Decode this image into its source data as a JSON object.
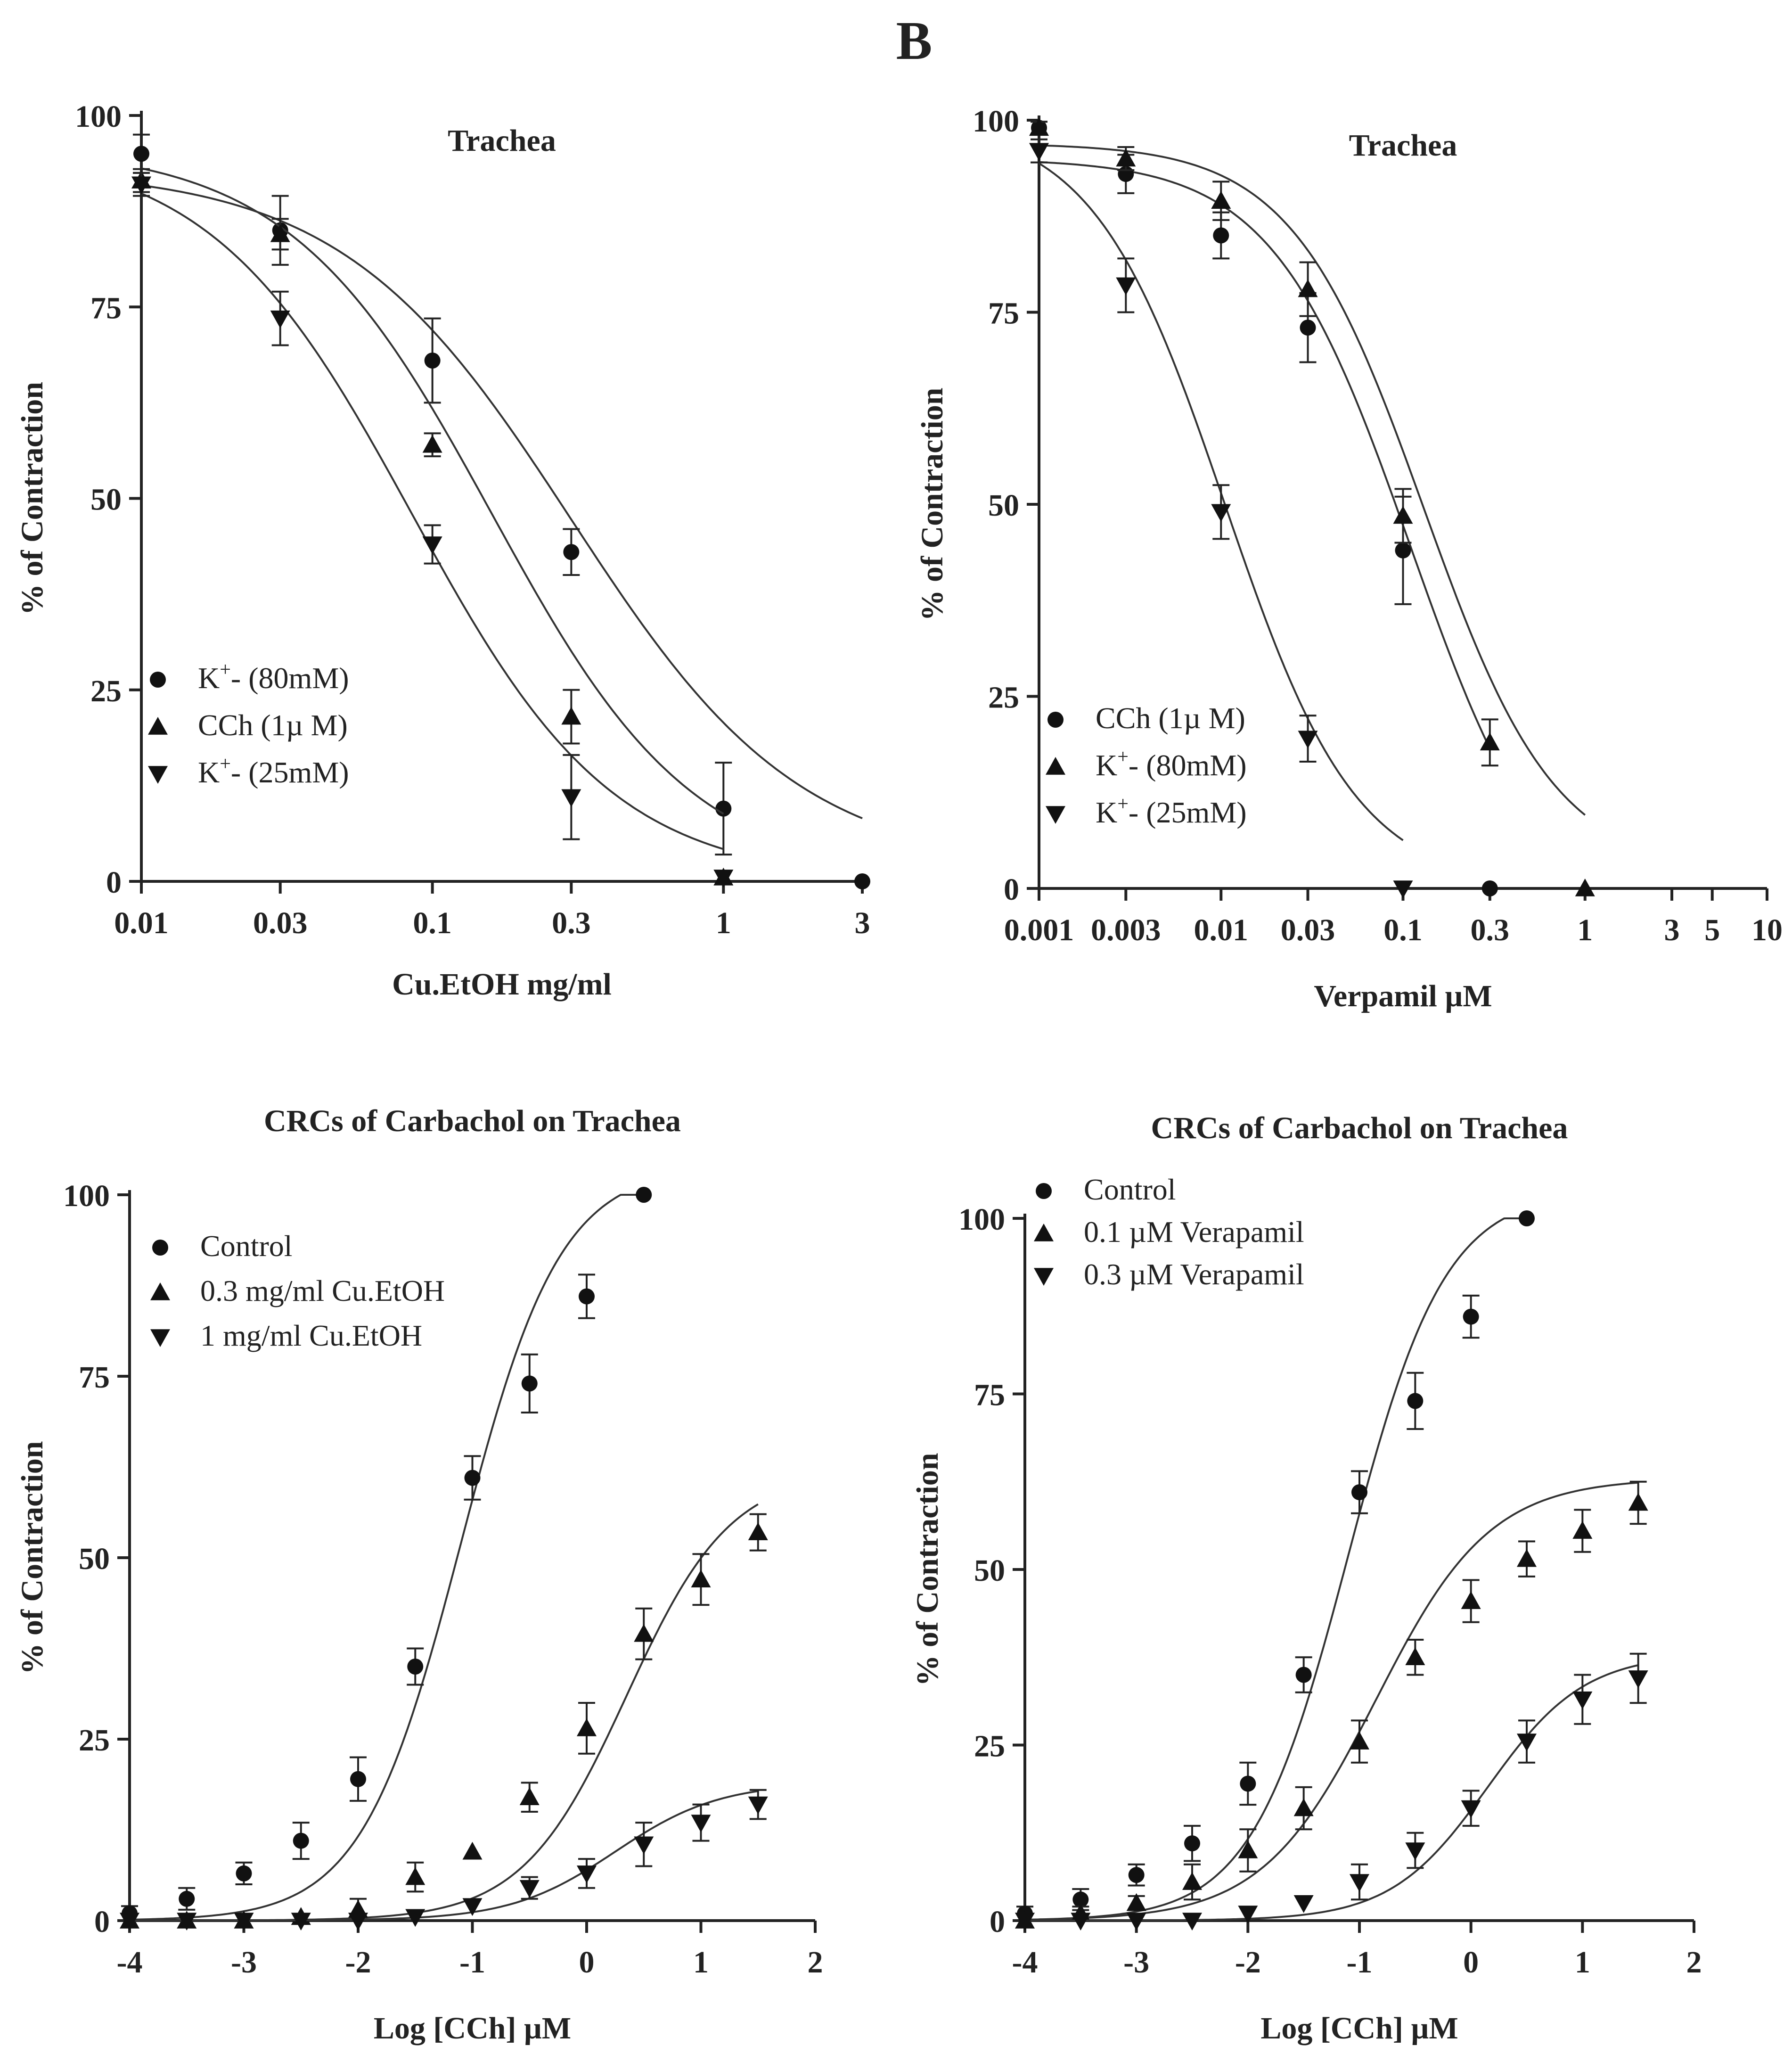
{
  "figure_label": "B",
  "chart_data": [
    {
      "type": "scatter",
      "title": "Trachea",
      "xlabel": "Cu.EtOH mg/ml",
      "ylabel": "% of Contraction",
      "xscale": "log",
      "xlim": [
        0.01,
        3
      ],
      "ylim": [
        0,
        100
      ],
      "xticks": [
        0.01,
        0.03,
        0.1,
        0.3,
        1,
        3
      ],
      "xtick_labels": [
        "0.01",
        "0.03",
        "0.1",
        "0.3",
        "1",
        "3"
      ],
      "yticks": [
        0,
        25,
        50,
        75,
        100
      ],
      "ytick_labels": [
        "0",
        "25",
        "50",
        "75",
        "100"
      ],
      "legend_position": "bottom-left",
      "series": [
        {
          "name": "K+- (80mM)",
          "label_base": "K",
          "label_sup": "+",
          "label_rest": "- (80mM)",
          "marker": "circle",
          "x": [
            0.01,
            0.03,
            0.1,
            0.3,
            1,
            3
          ],
          "y": [
            95,
            85,
            68,
            43,
            9.5,
            0
          ],
          "err": [
            2.5,
            4.5,
            5.5,
            3,
            6,
            0
          ],
          "fit": {
            "top": 93,
            "bottom": 1.5,
            "ic50": 0.3,
            "hill": 1.1
          }
        },
        {
          "name": "CCh (1µ M)",
          "label_base": "CCh (1µ M)",
          "label_sup": "",
          "label_rest": "",
          "marker": "triangle-up",
          "x": [
            0.01,
            0.03,
            0.1,
            0.3,
            1
          ],
          "y": [
            91.5,
            84.5,
            57,
            21.5,
            0.5
          ],
          "err": [
            1.5,
            2,
            1.5,
            3.5,
            0
          ],
          "fit": {
            "top": 96,
            "bottom": 0,
            "ic50": 0.16,
            "hill": 1.25
          }
        },
        {
          "name": "K+- (25mM)",
          "label_base": "K",
          "label_sup": "+",
          "label_rest": "- (25mM)",
          "marker": "triangle-down",
          "x": [
            0.01,
            0.03,
            0.1,
            0.3,
            1
          ],
          "y": [
            91,
            73.5,
            44,
            11,
            0.5
          ],
          "err": [
            1.5,
            3.5,
            2.5,
            5.5,
            0
          ],
          "fit": {
            "top": 96,
            "bottom": 0,
            "ic50": 0.085,
            "hill": 1.25
          }
        }
      ]
    },
    {
      "type": "scatter",
      "title": "Trachea",
      "xlabel": "Verpamil µM",
      "ylabel": "% of Contraction",
      "xscale": "log",
      "xlim": [
        0.001,
        10
      ],
      "ylim": [
        0,
        100
      ],
      "xticks": [
        0.001,
        0.003,
        0.01,
        0.03,
        0.1,
        0.3,
        1,
        3,
        5,
        10
      ],
      "xtick_labels": [
        "0.001",
        "0.003",
        "0.01",
        "0.03",
        "0.1",
        "0.3",
        "1",
        "3",
        "5",
        "10"
      ],
      "yticks": [
        0,
        25,
        50,
        75,
        100
      ],
      "ytick_labels": [
        "0",
        "25",
        "50",
        "75",
        "100"
      ],
      "legend_position": "bottom-left",
      "series": [
        {
          "name": "CCh (1µ M)",
          "label_base": "CCh (1µ M)",
          "label_sup": "",
          "label_rest": "",
          "marker": "circle",
          "x": [
            0.001,
            0.003,
            0.01,
            0.03,
            0.1,
            0.3
          ],
          "y": [
            99,
            93,
            85,
            73,
            44,
            0
          ],
          "err": [
            0.8,
            2.5,
            3,
            4.5,
            7,
            0
          ],
          "fit": {
            "top": 95,
            "bottom": -6,
            "ic50": 0.11,
            "hill": 1.15
          }
        },
        {
          "name": "K+- (80mM)",
          "label_base": "K",
          "label_sup": "+",
          "label_rest": "- (80mM)",
          "marker": "triangle-up",
          "x": [
            0.001,
            0.003,
            0.01,
            0.03,
            0.1,
            0.3,
            1
          ],
          "y": [
            99,
            95,
            89.5,
            78,
            48.5,
            19,
            0
          ],
          "err": [
            0.8,
            1.5,
            2.5,
            3.5,
            3.5,
            3,
            0
          ],
          "fit": {
            "top": 97,
            "bottom": 2,
            "ic50": 0.13,
            "hill": 1.2
          }
        },
        {
          "name": "K+- (25mM)",
          "label_base": "K",
          "label_sup": "+",
          "label_rest": "- (25mM)",
          "marker": "triangle-down",
          "x": [
            0.001,
            0.003,
            0.01,
            0.03,
            0.1
          ],
          "y": [
            96,
            78.5,
            49,
            19.5,
            0
          ],
          "err": [
            1.5,
            3.5,
            3.5,
            3,
            0
          ],
          "fit": {
            "top": 100,
            "bottom": 0,
            "ic50": 0.0105,
            "hill": 1.2
          }
        }
      ]
    },
    {
      "type": "scatter",
      "title": "CRCs of Carbachol on Trachea",
      "xlabel": "Log [CCh] µM",
      "ylabel": "% of Contraction",
      "xscale": "linear",
      "xlim": [
        -4,
        2
      ],
      "ylim": [
        0,
        100
      ],
      "xticks": [
        -4,
        -3,
        -2,
        -1,
        0,
        1,
        2
      ],
      "xtick_labels": [
        "-4",
        "-3",
        "-2",
        "-1",
        "0",
        "1",
        "2"
      ],
      "yticks": [
        0,
        25,
        50,
        75,
        100
      ],
      "ytick_labels": [
        "0",
        "25",
        "50",
        "75",
        "100"
      ],
      "legend_position": "top-left",
      "series": [
        {
          "name": "Control",
          "label_base": "Control",
          "label_sup": "",
          "label_rest": "",
          "marker": "circle",
          "x": [
            -4,
            -3.5,
            -3,
            -2.5,
            -2,
            -1.5,
            -1,
            -0.5,
            0,
            0.5
          ],
          "y": [
            1,
            3,
            6.5,
            11,
            19.5,
            35,
            61,
            74,
            86,
            100
          ],
          "err": [
            1,
            1.5,
            1.5,
            2.5,
            3,
            2.5,
            3,
            4,
            3,
            0
          ],
          "fit": {
            "top": 104,
            "bottom": 0,
            "x50": -1.1,
            "hill": 1.0
          }
        },
        {
          "name": "0.3 mg/ml Cu.EtOH",
          "label_base": "0.3 mg/ml Cu.EtOH",
          "label_sup": "",
          "label_rest": "",
          "marker": "triangle-up",
          "x": [
            -4,
            -3.5,
            -3,
            -2.5,
            -2,
            -1.5,
            -1,
            -0.5,
            0,
            0.5,
            1,
            1.5
          ],
          "y": [
            0,
            0,
            0,
            0.5,
            1.5,
            6,
            9.5,
            17,
            26.5,
            39.5,
            47,
            53.5
          ],
          "err": [
            0,
            0,
            0,
            0,
            1.5,
            2,
            0,
            2,
            3.5,
            3.5,
            3.5,
            2.5
          ],
          "fit": {
            "top": 62,
            "bottom": 0,
            "x50": 0.35,
            "hill": 0.95
          }
        },
        {
          "name": "1 mg/ml Cu.EtOH",
          "label_base": "1 mg/ml Cu.EtOH",
          "label_sup": "",
          "label_rest": "",
          "marker": "triangle-down",
          "x": [
            -4,
            -3.5,
            -3,
            -2.5,
            -2,
            -1.5,
            -1,
            -0.5,
            0,
            0.5,
            1,
            1.5
          ],
          "y": [
            0,
            0,
            0,
            0,
            0,
            0.5,
            2,
            4.5,
            6.5,
            10.5,
            13.5,
            16
          ],
          "err": [
            0,
            0,
            0,
            0,
            0,
            0,
            0,
            1.5,
            2,
            3,
            2.5,
            2
          ],
          "fit": {
            "top": 19,
            "bottom": 0,
            "x50": 0.25,
            "hill": 0.95
          }
        }
      ]
    },
    {
      "type": "scatter",
      "title": "CRCs of Carbachol on Trachea",
      "xlabel": "Log [CCh] µM",
      "ylabel": "% of Contraction",
      "xscale": "linear",
      "xlim": [
        -4,
        2
      ],
      "ylim": [
        0,
        100
      ],
      "xticks": [
        -4,
        -3,
        -2,
        -1,
        0,
        1,
        2
      ],
      "xtick_labels": [
        "-4",
        "-3",
        "-2",
        "-1",
        "0",
        "1",
        "2"
      ],
      "yticks": [
        0,
        25,
        50,
        75,
        100
      ],
      "ytick_labels": [
        "0",
        "25",
        "50",
        "75",
        "100"
      ],
      "legend_position": "top-left",
      "series": [
        {
          "name": "Control",
          "label_base": "Control",
          "label_sup": "",
          "label_rest": "",
          "marker": "circle",
          "x": [
            -4,
            -3.5,
            -3,
            -2.5,
            -2,
            -1.5,
            -1,
            -0.5,
            0,
            0.5
          ],
          "y": [
            1,
            3,
            6.5,
            11,
            19.5,
            35,
            61,
            74,
            86,
            100
          ],
          "err": [
            1,
            1.5,
            1.5,
            2.5,
            3,
            2.5,
            3,
            4,
            3,
            0
          ],
          "fit": {
            "top": 104,
            "bottom": 0,
            "x50": -1.1,
            "hill": 1.0
          }
        },
        {
          "name": "0.1 µM Verapamil",
          "label_base": "0.1 µM Verapamil",
          "label_sup": "",
          "label_rest": "",
          "marker": "triangle-up",
          "x": [
            -4,
            -3.5,
            -3,
            -2.5,
            -2,
            -1.5,
            -1,
            -0.5,
            0,
            0.5,
            1,
            1.5
          ],
          "y": [
            0,
            1,
            2.5,
            5.5,
            10,
            16,
            25.5,
            37.5,
            45.5,
            51.5,
            55.5,
            59.5
          ],
          "err": [
            0,
            1,
            1,
            2.5,
            3,
            3,
            3,
            2.5,
            3,
            2.5,
            3,
            3
          ],
          "fit": {
            "top": 63,
            "bottom": 0,
            "x50": -0.85,
            "hill": 0.85
          }
        },
        {
          "name": "0.3 µM Verapamil",
          "label_base": "0.3 µM Verapamil",
          "label_sup": "",
          "label_rest": "",
          "marker": "triangle-down",
          "x": [
            -4,
            -3.5,
            -3,
            -2.5,
            -2,
            -1.5,
            -1,
            -0.5,
            0,
            0.5,
            1,
            1.5
          ],
          "y": [
            0,
            0,
            0,
            0,
            1,
            2.5,
            5.5,
            10,
            16,
            25.5,
            31.5,
            34.5
          ],
          "err": [
            0,
            0,
            0,
            0,
            0,
            0,
            2.5,
            2.5,
            2.5,
            3,
            3.5,
            3.5
          ],
          "fit": {
            "top": 38,
            "bottom": 0,
            "x50": 0.15,
            "hill": 1.0
          }
        }
      ]
    }
  ]
}
